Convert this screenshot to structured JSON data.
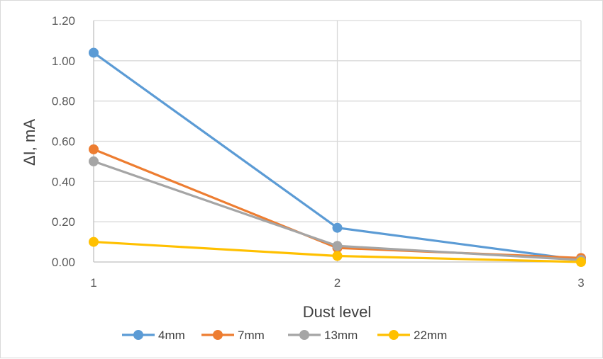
{
  "chart_data": {
    "type": "line",
    "title": "",
    "xlabel": "Dust level",
    "ylabel": "ΔI, mA",
    "x": [
      1,
      2,
      3
    ],
    "x_tick_labels": [
      "1",
      "2",
      "3"
    ],
    "xlim": [
      1,
      3
    ],
    "ylim": [
      0,
      1.2
    ],
    "y_tick_labels": [
      "0.00",
      "0.20",
      "0.40",
      "0.60",
      "0.80",
      "1.00",
      "1.20"
    ],
    "grid": true,
    "legend_position": "bottom",
    "series": [
      {
        "name": "4mm",
        "color": "#5b9bd5",
        "values": [
          1.04,
          0.17,
          0.01
        ]
      },
      {
        "name": "7mm",
        "color": "#ed7d31",
        "values": [
          0.56,
          0.07,
          0.02
        ]
      },
      {
        "name": "13mm",
        "color": "#a5a5a5",
        "values": [
          0.5,
          0.08,
          0.01
        ]
      },
      {
        "name": "22mm",
        "color": "#ffc000",
        "values": [
          0.1,
          0.03,
          0.0
        ]
      }
    ]
  }
}
